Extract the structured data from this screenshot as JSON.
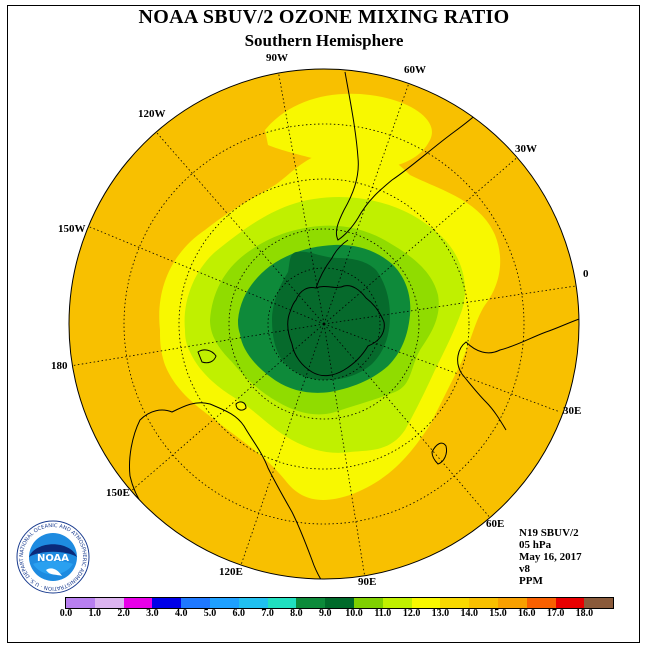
{
  "title": "NOAA SBUV/2 OZONE MIXING RATIO",
  "subtitle": "Southern Hemisphere",
  "longitude_labels": [
    "90W",
    "60W",
    "30W",
    "0",
    "30E",
    "60E",
    "90E",
    "120E",
    "150E",
    "180",
    "150W",
    "120W"
  ],
  "info": {
    "satellite": "N19 SBUV/2",
    "level": "05 hPa",
    "date": "May 16, 2017",
    "version": "v8",
    "units": "PPM"
  },
  "logo": {
    "name": "NOAA",
    "ring_text": "NATIONAL OCEANIC AND ATMOSPHERIC ADMINISTRATION · U.S. DEPARTMENT OF COMMERCE"
  },
  "colorbar": {
    "ticks": [
      "0.0",
      "1.0",
      "2.0",
      "3.0",
      "4.0",
      "5.0",
      "6.0",
      "7.0",
      "8.0",
      "9.0",
      "10.0",
      "11.0",
      "12.0",
      "13.0",
      "14.0",
      "15.0",
      "16.0",
      "17.0",
      "18.0"
    ],
    "colors": [
      "#b87ff0",
      "#dcb4f0",
      "#e800e8",
      "#0000e8",
      "#1e78ff",
      "#1ea0ff",
      "#20c0f0",
      "#20e0c0",
      "#0c8a3a",
      "#006a2a",
      "#80d000",
      "#c0f000",
      "#f8f800",
      "#f8d800",
      "#f8c000",
      "#f8a000",
      "#f86000",
      "#e80000",
      "#8a5a3a"
    ]
  },
  "field_colors": {
    "background": "#f8c000",
    "level_13": "#f8f800",
    "level_12": "#c0f000",
    "level_11": "#90dc00",
    "level_10": "#0e8a3a",
    "level_9": "#066a2c"
  }
}
